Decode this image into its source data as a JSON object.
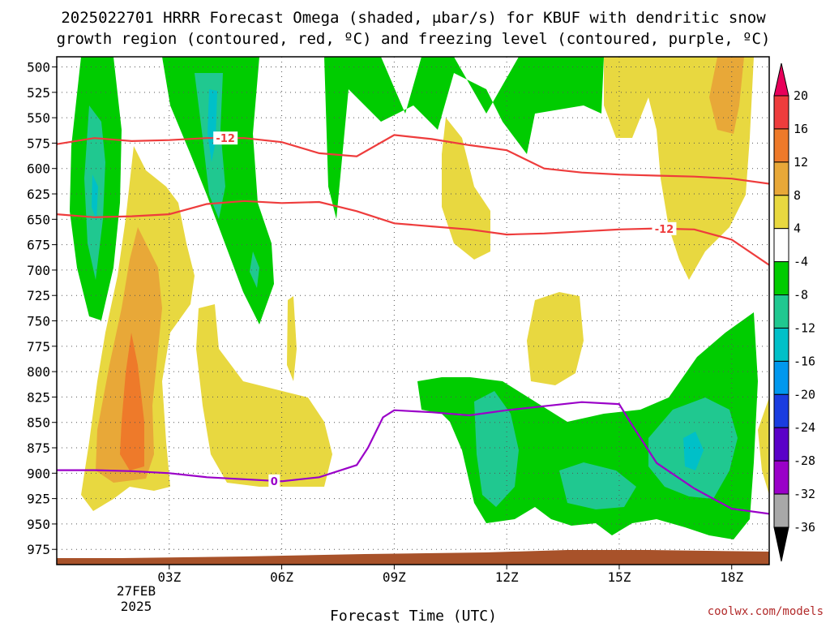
{
  "chart_data": {
    "type": "heatmap",
    "title_line1": "2025022701 HRRR Forecast Omega (shaded, μbar/s) for KBUF with dendritic snow",
    "title_line2": "growth region (contoured, red, ºC) and freezing level (contoured, purple, ºC)",
    "xlabel": "Forecast Time (UTC)",
    "x_date_line1": "27FEB",
    "x_date_line2": "2025",
    "credit": "coolwx.com/models",
    "x_ticks": [
      {
        "hour": 3,
        "label": "03Z"
      },
      {
        "hour": 6,
        "label": "06Z"
      },
      {
        "hour": 9,
        "label": "09Z"
      },
      {
        "hour": 12,
        "label": "12Z"
      },
      {
        "hour": 15,
        "label": "15Z"
      },
      {
        "hour": 18,
        "label": "18Z"
      }
    ],
    "xlim": [
      0,
      19
    ],
    "y_ticks": [
      500,
      525,
      550,
      575,
      600,
      625,
      650,
      675,
      700,
      725,
      750,
      775,
      800,
      825,
      850,
      875,
      900,
      925,
      950,
      975
    ],
    "ylim": [
      990,
      490
    ],
    "grid": true,
    "colorbar": {
      "levels": [
        20,
        16,
        12,
        8,
        4,
        -4,
        -8,
        -12,
        -16,
        -20,
        -24,
        -28,
        -32,
        -36
      ],
      "colors": [
        "#e8005a",
        "#ee3c3c",
        "#ee7a2a",
        "#e8a838",
        "#e8d840",
        "#ffffff",
        "#00cc00",
        "#20c890",
        "#00c0c8",
        "#0098ee",
        "#1a3ce0",
        "#5a00c8",
        "#9a00c8",
        "#a8a8a8",
        "#000000"
      ]
    },
    "shading": {
      "green": "#00cc00",
      "teal": "#20c890",
      "cyan": "#00c0c8",
      "yellow": "#e8d840",
      "gold": "#e8a838",
      "orange": "#ee7a2a",
      "terrain": "#a8522a"
    },
    "series": [
      {
        "name": "-12",
        "color": "#ee3c3c",
        "points": [
          [
            0,
            576
          ],
          [
            1,
            570
          ],
          [
            2,
            573
          ],
          [
            3,
            572
          ],
          [
            4,
            570
          ],
          [
            5,
            570
          ],
          [
            6,
            574
          ],
          [
            7,
            585
          ],
          [
            8,
            588
          ],
          [
            9,
            567
          ],
          [
            10,
            571
          ],
          [
            11,
            577
          ],
          [
            12,
            582
          ],
          [
            13,
            600
          ],
          [
            14,
            604
          ],
          [
            15,
            606
          ],
          [
            16,
            607
          ],
          [
            17,
            608
          ],
          [
            18,
            610
          ],
          [
            19,
            615
          ]
        ]
      },
      {
        "name": "-12",
        "color": "#ee3c3c",
        "points": [
          [
            0,
            645
          ],
          [
            1,
            648
          ],
          [
            2,
            647
          ],
          [
            3,
            645
          ],
          [
            4,
            635
          ],
          [
            5,
            632
          ],
          [
            6,
            634
          ],
          [
            7,
            633
          ],
          [
            8,
            642
          ],
          [
            9,
            654
          ],
          [
            10,
            657
          ],
          [
            11,
            660
          ],
          [
            12,
            665
          ],
          [
            13,
            664
          ],
          [
            14,
            662
          ],
          [
            15,
            660
          ],
          [
            16,
            659
          ],
          [
            17,
            660
          ],
          [
            18,
            670
          ],
          [
            19,
            695
          ]
        ]
      },
      {
        "name": "0",
        "color": "#9a00c8",
        "points": [
          [
            0,
            897
          ],
          [
            1,
            897
          ],
          [
            2,
            898
          ],
          [
            3,
            900
          ],
          [
            4,
            904
          ],
          [
            5,
            906
          ],
          [
            6,
            908
          ],
          [
            7,
            904
          ],
          [
            8,
            892
          ],
          [
            8.3,
            875
          ],
          [
            8.7,
            845
          ],
          [
            9,
            838
          ],
          [
            10,
            840
          ],
          [
            11,
            843
          ],
          [
            12,
            838
          ],
          [
            13,
            834
          ],
          [
            14,
            830
          ],
          [
            15,
            832
          ],
          [
            15.3,
            850
          ],
          [
            16,
            890
          ],
          [
            17,
            915
          ],
          [
            18,
            935
          ],
          [
            19,
            940
          ]
        ]
      }
    ]
  }
}
